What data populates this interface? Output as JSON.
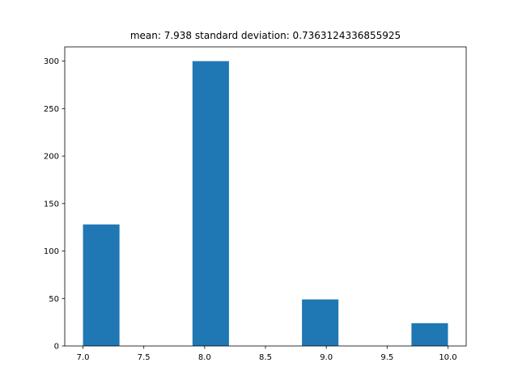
{
  "chart_data": {
    "type": "bar",
    "title": "mean: 7.938 standard deviation: 0.7363124336855925",
    "xlabel": "",
    "ylabel": "",
    "xlim": [
      6.85,
      10.15
    ],
    "ylim": [
      0,
      315
    ],
    "xticks": [
      7.0,
      7.5,
      8.0,
      8.5,
      9.0,
      9.5,
      10.0
    ],
    "xtick_labels": [
      "7.0",
      "7.5",
      "8.0",
      "8.5",
      "9.0",
      "9.5",
      "10.0"
    ],
    "yticks": [
      0,
      50,
      100,
      150,
      200,
      250,
      300
    ],
    "ytick_labels": [
      "0",
      "50",
      "100",
      "150",
      "200",
      "250",
      "300"
    ],
    "bins": [
      {
        "x_start": 7.0,
        "x_end": 7.3,
        "count": 128
      },
      {
        "x_start": 7.3,
        "x_end": 7.6,
        "count": 0
      },
      {
        "x_start": 7.6,
        "x_end": 7.9,
        "count": 0
      },
      {
        "x_start": 7.9,
        "x_end": 8.2,
        "count": 300
      },
      {
        "x_start": 8.2,
        "x_end": 8.5,
        "count": 0
      },
      {
        "x_start": 8.5,
        "x_end": 8.8,
        "count": 0
      },
      {
        "x_start": 8.8,
        "x_end": 9.1,
        "count": 49
      },
      {
        "x_start": 9.1,
        "x_end": 9.4,
        "count": 0
      },
      {
        "x_start": 9.4,
        "x_end": 9.7,
        "count": 0
      },
      {
        "x_start": 9.7,
        "x_end": 10.0,
        "count": 24
      }
    ],
    "bar_color": "#1f77b4",
    "grid": false,
    "legend": null
  }
}
